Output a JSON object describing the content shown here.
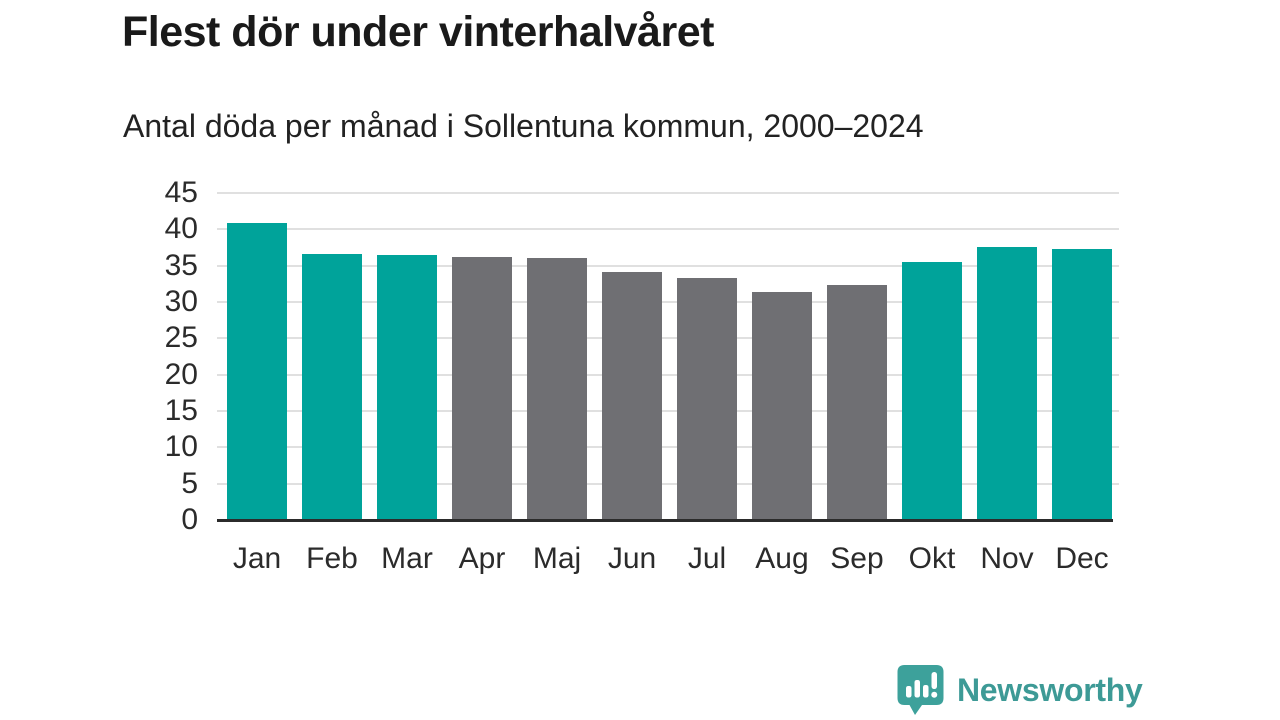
{
  "header": {
    "title": "Flest dör under vinterhalvåret",
    "subtitle": "Antal döda per månad i Sollentuna kommun, 2000–2024"
  },
  "chart_data": {
    "type": "bar",
    "title": "Flest dör under vinterhalvåret",
    "subtitle": "Antal döda per månad i Sollentuna kommun, 2000–2024",
    "categories": [
      "Jan",
      "Feb",
      "Mar",
      "Apr",
      "Maj",
      "Jun",
      "Jul",
      "Aug",
      "Sep",
      "Okt",
      "Nov",
      "Dec"
    ],
    "values": [
      40.7,
      36.4,
      36.3,
      36.0,
      35.9,
      34.0,
      33.1,
      31.3,
      32.2,
      35.4,
      37.4,
      37.1
    ],
    "bar_colors": [
      "#00a39a",
      "#00a39a",
      "#00a39a",
      "#6f6f73",
      "#6f6f73",
      "#6f6f73",
      "#6f6f73",
      "#6f6f73",
      "#6f6f73",
      "#00a39a",
      "#00a39a",
      "#00a39a"
    ],
    "xlabel": "",
    "ylabel": "",
    "ylim": [
      0,
      45
    ],
    "yticks": [
      0,
      5,
      10,
      15,
      20,
      25,
      30,
      35,
      40,
      45
    ],
    "grid": true,
    "legend": false
  },
  "colors": {
    "winter_bar": "#00a39a",
    "summer_bar": "#6f6f73",
    "gridline": "#e0e0e0",
    "axis": "#2b2b2b",
    "title_text": "#1a1a1a",
    "tick_text": "#2b2b2b",
    "brand": "#3d9a96",
    "logo_fill": "#3da19b"
  },
  "footer": {
    "brand": "Newsworthy",
    "logo_icon": "newsworthy-speech-bubble-chart-icon"
  }
}
